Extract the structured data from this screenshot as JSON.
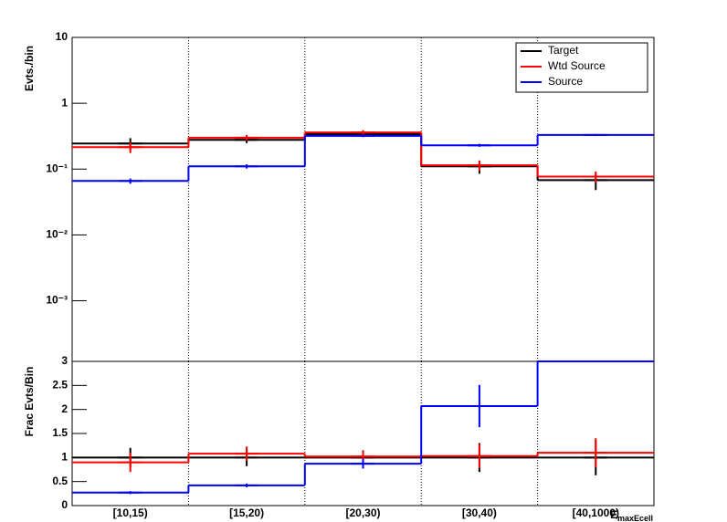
{
  "chart_data": [
    {
      "type": "step",
      "y_label": "Evts./bin",
      "log_y": true,
      "ylim": [
        0.00012,
        10
      ],
      "yticks": [
        {
          "value": 0.001,
          "label": "10⁻³"
        },
        {
          "value": 0.01,
          "label": "10⁻²"
        },
        {
          "value": 0.1,
          "label": "10⁻¹"
        },
        1,
        10
      ],
      "xgrid": true,
      "legend": "upper right",
      "series": [
        {
          "name": "Target",
          "color": "#000000",
          "values": [
            0.245,
            0.278,
            0.34,
            0.11,
            0.068
          ],
          "errors": [
            0.05,
            0.03,
            0.03,
            0.025,
            0.02
          ]
        },
        {
          "name": "Wtd Source",
          "color": "#ff0000",
          "values": [
            0.215,
            0.3,
            0.36,
            0.114,
            0.077
          ],
          "errors": [
            0.04,
            0.03,
            0.03,
            0.02,
            0.015
          ]
        },
        {
          "name": "Source",
          "color": "#0000ff",
          "values": [
            0.066,
            0.11,
            0.32,
            0.23,
            0.33
          ],
          "errors": [
            0.006,
            0.008,
            0.015,
            0.012,
            0.012
          ]
        }
      ]
    },
    {
      "type": "step",
      "y_label": "Frac Evts/Bin",
      "ylim": [
        0,
        3
      ],
      "yticks": [
        0,
        0.5,
        1,
        1.5,
        2,
        2.5,
        3
      ],
      "xgrid": true,
      "categories": [
        "[10,15)",
        "[15,20)",
        "[20,30)",
        "[30,40)",
        "[40,1000)"
      ],
      "x_label": "E",
      "x_label_sub": "maxEcell",
      "series": [
        {
          "color": "#000000",
          "values": [
            1,
            1,
            1,
            1,
            1
          ],
          "errors": [
            0.2,
            0.18,
            0.15,
            0.3,
            0.37
          ]
        },
        {
          "color": "#ff0000",
          "values": [
            0.9,
            1.08,
            1.02,
            1.03,
            1.1
          ],
          "errors": [
            0.2,
            0.15,
            0.12,
            0.25,
            0.3
          ]
        },
        {
          "color": "#0000ff",
          "values": [
            0.27,
            0.42,
            0.87,
            2.07,
            3
          ],
          "errors": [
            0.03,
            0.04,
            0.1,
            0.44,
            0
          ]
        }
      ]
    }
  ]
}
